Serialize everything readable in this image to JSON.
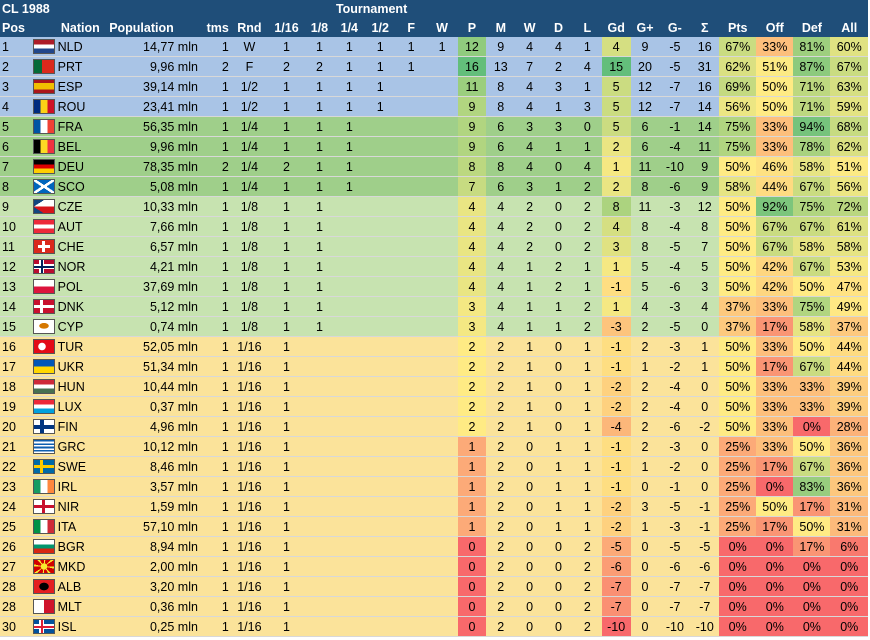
{
  "title": "CL 1988",
  "tournament_label": "Tournament",
  "headers": {
    "pos": "Pos",
    "nation": "Nation",
    "population": "Population",
    "tms": "tms",
    "rnd": "Rnd",
    "r16": "1/16",
    "r8": "1/8",
    "r4": "1/4",
    "r2": "1/2",
    "f": "F",
    "w": "W",
    "p": "P",
    "m": "M",
    "wins": "W",
    "d": "D",
    "l": "L",
    "gd": "Gd",
    "gplus": "G+",
    "gminus": "G-",
    "sigma": "Σ",
    "pts": "Pts",
    "off": "Off",
    "def": "Def",
    "all": "All"
  },
  "colors": {
    "band_blue": "#a9c4e6",
    "band_green": "#9fcf8a",
    "band_lightgreen": "#c7e3b0",
    "band_yellow": "#fbe39a",
    "header": "#1f4e79"
  },
  "rows": [
    {
      "pos": "1",
      "code": "NLD",
      "flag": "nld",
      "pop": "14,77 mln",
      "tms": "1",
      "rnd": "W",
      "r16": "1",
      "r8": "1",
      "r4": "1",
      "r2": "1",
      "f": "1",
      "w": "1",
      "p": "12",
      "m": "9",
      "wins": "4",
      "d": "4",
      "l": "1",
      "gd": "4",
      "gp": "9",
      "gm": "-5",
      "sig": "16",
      "pts": "67%",
      "off": "33%",
      "def": "81%",
      "all": "60%",
      "band": "blue"
    },
    {
      "pos": "2",
      "code": "PRT",
      "flag": "prt",
      "pop": "9,96 mln",
      "tms": "2",
      "rnd": "F",
      "r16": "2",
      "r8": "2",
      "r4": "1",
      "r2": "1",
      "f": "1",
      "w": "",
      "p": "16",
      "m": "13",
      "wins": "7",
      "d": "2",
      "l": "4",
      "gd": "15",
      "gp": "20",
      "gm": "-5",
      "sig": "31",
      "pts": "62%",
      "off": "51%",
      "def": "87%",
      "all": "67%",
      "band": "blue"
    },
    {
      "pos": "3",
      "code": "ESP",
      "flag": "esp",
      "pop": "39,14 mln",
      "tms": "1",
      "rnd": "1/2",
      "r16": "1",
      "r8": "1",
      "r4": "1",
      "r2": "1",
      "f": "",
      "w": "",
      "p": "11",
      "m": "8",
      "wins": "4",
      "d": "3",
      "l": "1",
      "gd": "5",
      "gp": "12",
      "gm": "-7",
      "sig": "16",
      "pts": "69%",
      "off": "50%",
      "def": "71%",
      "all": "63%",
      "band": "blue"
    },
    {
      "pos": "4",
      "code": "ROU",
      "flag": "rou",
      "pop": "23,41 mln",
      "tms": "1",
      "rnd": "1/2",
      "r16": "1",
      "r8": "1",
      "r4": "1",
      "r2": "1",
      "f": "",
      "w": "",
      "p": "9",
      "m": "8",
      "wins": "4",
      "d": "1",
      "l": "3",
      "gd": "5",
      "gp": "12",
      "gm": "-7",
      "sig": "14",
      "pts": "56%",
      "off": "50%",
      "def": "71%",
      "all": "59%",
      "band": "blue"
    },
    {
      "pos": "5",
      "code": "FRA",
      "flag": "fra",
      "pop": "56,35 mln",
      "tms": "1",
      "rnd": "1/4",
      "r16": "1",
      "r8": "1",
      "r4": "1",
      "r2": "",
      "f": "",
      "w": "",
      "p": "9",
      "m": "6",
      "wins": "3",
      "d": "3",
      "l": "0",
      "gd": "5",
      "gp": "6",
      "gm": "-1",
      "sig": "14",
      "pts": "75%",
      "off": "33%",
      "def": "94%",
      "all": "68%",
      "band": "green"
    },
    {
      "pos": "6",
      "code": "BEL",
      "flag": "bel",
      "pop": "9,96 mln",
      "tms": "1",
      "rnd": "1/4",
      "r16": "1",
      "r8": "1",
      "r4": "1",
      "r2": "",
      "f": "",
      "w": "",
      "p": "9",
      "m": "6",
      "wins": "4",
      "d": "1",
      "l": "1",
      "gd": "2",
      "gp": "6",
      "gm": "-4",
      "sig": "11",
      "pts": "75%",
      "off": "33%",
      "def": "78%",
      "all": "62%",
      "band": "green"
    },
    {
      "pos": "7",
      "code": "DEU",
      "flag": "deu",
      "pop": "78,35 mln",
      "tms": "2",
      "rnd": "1/4",
      "r16": "2",
      "r8": "1",
      "r4": "1",
      "r2": "",
      "f": "",
      "w": "",
      "p": "8",
      "m": "8",
      "wins": "4",
      "d": "0",
      "l": "4",
      "gd": "1",
      "gp": "11",
      "gm": "-10",
      "sig": "9",
      "pts": "50%",
      "off": "46%",
      "def": "58%",
      "all": "51%",
      "band": "green"
    },
    {
      "pos": "8",
      "code": "SCO",
      "flag": "sco",
      "pop": "5,08 mln",
      "tms": "1",
      "rnd": "1/4",
      "r16": "1",
      "r8": "1",
      "r4": "1",
      "r2": "",
      "f": "",
      "w": "",
      "p": "7",
      "m": "6",
      "wins": "3",
      "d": "1",
      "l": "2",
      "gd": "2",
      "gp": "8",
      "gm": "-6",
      "sig": "9",
      "pts": "58%",
      "off": "44%",
      "def": "67%",
      "all": "56%",
      "band": "green"
    },
    {
      "pos": "9",
      "code": "CZE",
      "flag": "cze",
      "pop": "10,33 mln",
      "tms": "1",
      "rnd": "1/8",
      "r16": "1",
      "r8": "1",
      "r4": "",
      "r2": "",
      "f": "",
      "w": "",
      "p": "4",
      "m": "4",
      "wins": "2",
      "d": "0",
      "l": "2",
      "gd": "8",
      "gp": "11",
      "gm": "-3",
      "sig": "12",
      "pts": "50%",
      "off": "92%",
      "def": "75%",
      "all": "72%",
      "band": "lightgreen"
    },
    {
      "pos": "10",
      "code": "AUT",
      "flag": "aut",
      "pop": "7,66 mln",
      "tms": "1",
      "rnd": "1/8",
      "r16": "1",
      "r8": "1",
      "r4": "",
      "r2": "",
      "f": "",
      "w": "",
      "p": "4",
      "m": "4",
      "wins": "2",
      "d": "0",
      "l": "2",
      "gd": "4",
      "gp": "8",
      "gm": "-4",
      "sig": "8",
      "pts": "50%",
      "off": "67%",
      "def": "67%",
      "all": "61%",
      "band": "lightgreen"
    },
    {
      "pos": "11",
      "code": "CHE",
      "flag": "che",
      "pop": "6,57 mln",
      "tms": "1",
      "rnd": "1/8",
      "r16": "1",
      "r8": "1",
      "r4": "",
      "r2": "",
      "f": "",
      "w": "",
      "p": "4",
      "m": "4",
      "wins": "2",
      "d": "0",
      "l": "2",
      "gd": "3",
      "gp": "8",
      "gm": "-5",
      "sig": "7",
      "pts": "50%",
      "off": "67%",
      "def": "58%",
      "all": "58%",
      "band": "lightgreen"
    },
    {
      "pos": "12",
      "code": "NOR",
      "flag": "nor",
      "pop": "4,21 mln",
      "tms": "1",
      "rnd": "1/8",
      "r16": "1",
      "r8": "1",
      "r4": "",
      "r2": "",
      "f": "",
      "w": "",
      "p": "4",
      "m": "4",
      "wins": "1",
      "d": "2",
      "l": "1",
      "gd": "1",
      "gp": "5",
      "gm": "-4",
      "sig": "5",
      "pts": "50%",
      "off": "42%",
      "def": "67%",
      "all": "53%",
      "band": "lightgreen"
    },
    {
      "pos": "13",
      "code": "POL",
      "flag": "pol",
      "pop": "37,69 mln",
      "tms": "1",
      "rnd": "1/8",
      "r16": "1",
      "r8": "1",
      "r4": "",
      "r2": "",
      "f": "",
      "w": "",
      "p": "4",
      "m": "4",
      "wins": "1",
      "d": "2",
      "l": "1",
      "gd": "-1",
      "gp": "5",
      "gm": "-6",
      "sig": "3",
      "pts": "50%",
      "off": "42%",
      "def": "50%",
      "all": "47%",
      "band": "lightgreen"
    },
    {
      "pos": "14",
      "code": "DNK",
      "flag": "dnk",
      "pop": "5,12 mln",
      "tms": "1",
      "rnd": "1/8",
      "r16": "1",
      "r8": "1",
      "r4": "",
      "r2": "",
      "f": "",
      "w": "",
      "p": "3",
      "m": "4",
      "wins": "1",
      "d": "1",
      "l": "2",
      "gd": "1",
      "gp": "4",
      "gm": "-3",
      "sig": "4",
      "pts": "37%",
      "off": "33%",
      "def": "75%",
      "all": "49%",
      "band": "lightgreen"
    },
    {
      "pos": "15",
      "code": "CYP",
      "flag": "cyp",
      "pop": "0,74 mln",
      "tms": "1",
      "rnd": "1/8",
      "r16": "1",
      "r8": "1",
      "r4": "",
      "r2": "",
      "f": "",
      "w": "",
      "p": "3",
      "m": "4",
      "wins": "1",
      "d": "1",
      "l": "2",
      "gd": "-3",
      "gp": "2",
      "gm": "-5",
      "sig": "0",
      "pts": "37%",
      "off": "17%",
      "def": "58%",
      "all": "37%",
      "band": "lightgreen"
    },
    {
      "pos": "16",
      "code": "TUR",
      "flag": "tur",
      "pop": "52,05 mln",
      "tms": "1",
      "rnd": "1/16",
      "r16": "1",
      "r8": "",
      "r4": "",
      "r2": "",
      "f": "",
      "w": "",
      "p": "2",
      "m": "2",
      "wins": "1",
      "d": "0",
      "l": "1",
      "gd": "-1",
      "gp": "2",
      "gm": "-3",
      "sig": "1",
      "pts": "50%",
      "off": "33%",
      "def": "50%",
      "all": "44%",
      "band": "yellow"
    },
    {
      "pos": "17",
      "code": "UKR",
      "flag": "ukr",
      "pop": "51,34 mln",
      "tms": "1",
      "rnd": "1/16",
      "r16": "1",
      "r8": "",
      "r4": "",
      "r2": "",
      "f": "",
      "w": "",
      "p": "2",
      "m": "2",
      "wins": "1",
      "d": "0",
      "l": "1",
      "gd": "-1",
      "gp": "1",
      "gm": "-2",
      "sig": "1",
      "pts": "50%",
      "off": "17%",
      "def": "67%",
      "all": "44%",
      "band": "yellow"
    },
    {
      "pos": "18",
      "code": "HUN",
      "flag": "hun",
      "pop": "10,44 mln",
      "tms": "1",
      "rnd": "1/16",
      "r16": "1",
      "r8": "",
      "r4": "",
      "r2": "",
      "f": "",
      "w": "",
      "p": "2",
      "m": "2",
      "wins": "1",
      "d": "0",
      "l": "1",
      "gd": "-2",
      "gp": "2",
      "gm": "-4",
      "sig": "0",
      "pts": "50%",
      "off": "33%",
      "def": "33%",
      "all": "39%",
      "band": "yellow"
    },
    {
      "pos": "19",
      "code": "LUX",
      "flag": "lux",
      "pop": "0,37 mln",
      "tms": "1",
      "rnd": "1/16",
      "r16": "1",
      "r8": "",
      "r4": "",
      "r2": "",
      "f": "",
      "w": "",
      "p": "2",
      "m": "2",
      "wins": "1",
      "d": "0",
      "l": "1",
      "gd": "-2",
      "gp": "2",
      "gm": "-4",
      "sig": "0",
      "pts": "50%",
      "off": "33%",
      "def": "33%",
      "all": "39%",
      "band": "yellow"
    },
    {
      "pos": "20",
      "code": "FIN",
      "flag": "fin",
      "pop": "4,96 mln",
      "tms": "1",
      "rnd": "1/16",
      "r16": "1",
      "r8": "",
      "r4": "",
      "r2": "",
      "f": "",
      "w": "",
      "p": "2",
      "m": "2",
      "wins": "1",
      "d": "0",
      "l": "1",
      "gd": "-4",
      "gp": "2",
      "gm": "-6",
      "sig": "-2",
      "pts": "50%",
      "off": "33%",
      "def": "0%",
      "all": "28%",
      "band": "yellow"
    },
    {
      "pos": "21",
      "code": "GRC",
      "flag": "grc",
      "pop": "10,12 mln",
      "tms": "1",
      "rnd": "1/16",
      "r16": "1",
      "r8": "",
      "r4": "",
      "r2": "",
      "f": "",
      "w": "",
      "p": "1",
      "m": "2",
      "wins": "0",
      "d": "1",
      "l": "1",
      "gd": "-1",
      "gp": "2",
      "gm": "-3",
      "sig": "0",
      "pts": "25%",
      "off": "33%",
      "def": "50%",
      "all": "36%",
      "band": "yellow"
    },
    {
      "pos": "22",
      "code": "SWE",
      "flag": "swe",
      "pop": "8,46 mln",
      "tms": "1",
      "rnd": "1/16",
      "r16": "1",
      "r8": "",
      "r4": "",
      "r2": "",
      "f": "",
      "w": "",
      "p": "1",
      "m": "2",
      "wins": "0",
      "d": "1",
      "l": "1",
      "gd": "-1",
      "gp": "1",
      "gm": "-2",
      "sig": "0",
      "pts": "25%",
      "off": "17%",
      "def": "67%",
      "all": "36%",
      "band": "yellow"
    },
    {
      "pos": "23",
      "code": "IRL",
      "flag": "irl",
      "pop": "3,57 mln",
      "tms": "1",
      "rnd": "1/16",
      "r16": "1",
      "r8": "",
      "r4": "",
      "r2": "",
      "f": "",
      "w": "",
      "p": "1",
      "m": "2",
      "wins": "0",
      "d": "1",
      "l": "1",
      "gd": "-1",
      "gp": "0",
      "gm": "-1",
      "sig": "0",
      "pts": "25%",
      "off": "0%",
      "def": "83%",
      "all": "36%",
      "band": "yellow"
    },
    {
      "pos": "24",
      "code": "NIR",
      "flag": "nir",
      "pop": "1,59 mln",
      "tms": "1",
      "rnd": "1/16",
      "r16": "1",
      "r8": "",
      "r4": "",
      "r2": "",
      "f": "",
      "w": "",
      "p": "1",
      "m": "2",
      "wins": "0",
      "d": "1",
      "l": "1",
      "gd": "-2",
      "gp": "3",
      "gm": "-5",
      "sig": "-1",
      "pts": "25%",
      "off": "50%",
      "def": "17%",
      "all": "31%",
      "band": "yellow"
    },
    {
      "pos": "25",
      "code": "ITA",
      "flag": "ita",
      "pop": "57,10 mln",
      "tms": "1",
      "rnd": "1/16",
      "r16": "1",
      "r8": "",
      "r4": "",
      "r2": "",
      "f": "",
      "w": "",
      "p": "1",
      "m": "2",
      "wins": "0",
      "d": "1",
      "l": "1",
      "gd": "-2",
      "gp": "1",
      "gm": "-3",
      "sig": "-1",
      "pts": "25%",
      "off": "17%",
      "def": "50%",
      "all": "31%",
      "band": "yellow"
    },
    {
      "pos": "26",
      "code": "BGR",
      "flag": "bgr",
      "pop": "8,94 mln",
      "tms": "1",
      "rnd": "1/16",
      "r16": "1",
      "r8": "",
      "r4": "",
      "r2": "",
      "f": "",
      "w": "",
      "p": "0",
      "m": "2",
      "wins": "0",
      "d": "0",
      "l": "2",
      "gd": "-5",
      "gp": "0",
      "gm": "-5",
      "sig": "-5",
      "pts": "0%",
      "off": "0%",
      "def": "17%",
      "all": "6%",
      "band": "yellow"
    },
    {
      "pos": "27",
      "code": "MKD",
      "flag": "mkd",
      "pop": "2,00 mln",
      "tms": "1",
      "rnd": "1/16",
      "r16": "1",
      "r8": "",
      "r4": "",
      "r2": "",
      "f": "",
      "w": "",
      "p": "0",
      "m": "2",
      "wins": "0",
      "d": "0",
      "l": "2",
      "gd": "-6",
      "gp": "0",
      "gm": "-6",
      "sig": "-6",
      "pts": "0%",
      "off": "0%",
      "def": "0%",
      "all": "0%",
      "band": "yellow"
    },
    {
      "pos": "28",
      "code": "ALB",
      "flag": "alb",
      "pop": "3,20 mln",
      "tms": "1",
      "rnd": "1/16",
      "r16": "1",
      "r8": "",
      "r4": "",
      "r2": "",
      "f": "",
      "w": "",
      "p": "0",
      "m": "2",
      "wins": "0",
      "d": "0",
      "l": "2",
      "gd": "-7",
      "gp": "0",
      "gm": "-7",
      "sig": "-7",
      "pts": "0%",
      "off": "0%",
      "def": "0%",
      "all": "0%",
      "band": "yellow"
    },
    {
      "pos": "28",
      "code": "MLT",
      "flag": "mlt",
      "pop": "0,36 mln",
      "tms": "1",
      "rnd": "1/16",
      "r16": "1",
      "r8": "",
      "r4": "",
      "r2": "",
      "f": "",
      "w": "",
      "p": "0",
      "m": "2",
      "wins": "0",
      "d": "0",
      "l": "2",
      "gd": "-7",
      "gp": "0",
      "gm": "-7",
      "sig": "-7",
      "pts": "0%",
      "off": "0%",
      "def": "0%",
      "all": "0%",
      "band": "yellow"
    },
    {
      "pos": "30",
      "code": "ISL",
      "flag": "isl",
      "pop": "0,25 mln",
      "tms": "1",
      "rnd": "1/16",
      "r16": "1",
      "r8": "",
      "r4": "",
      "r2": "",
      "f": "",
      "w": "",
      "p": "0",
      "m": "2",
      "wins": "0",
      "d": "0",
      "l": "2",
      "gd": "-10",
      "gp": "0",
      "gm": "-10",
      "sig": "-10",
      "pts": "0%",
      "off": "0%",
      "def": "0%",
      "all": "0%",
      "band": "yellow"
    }
  ]
}
